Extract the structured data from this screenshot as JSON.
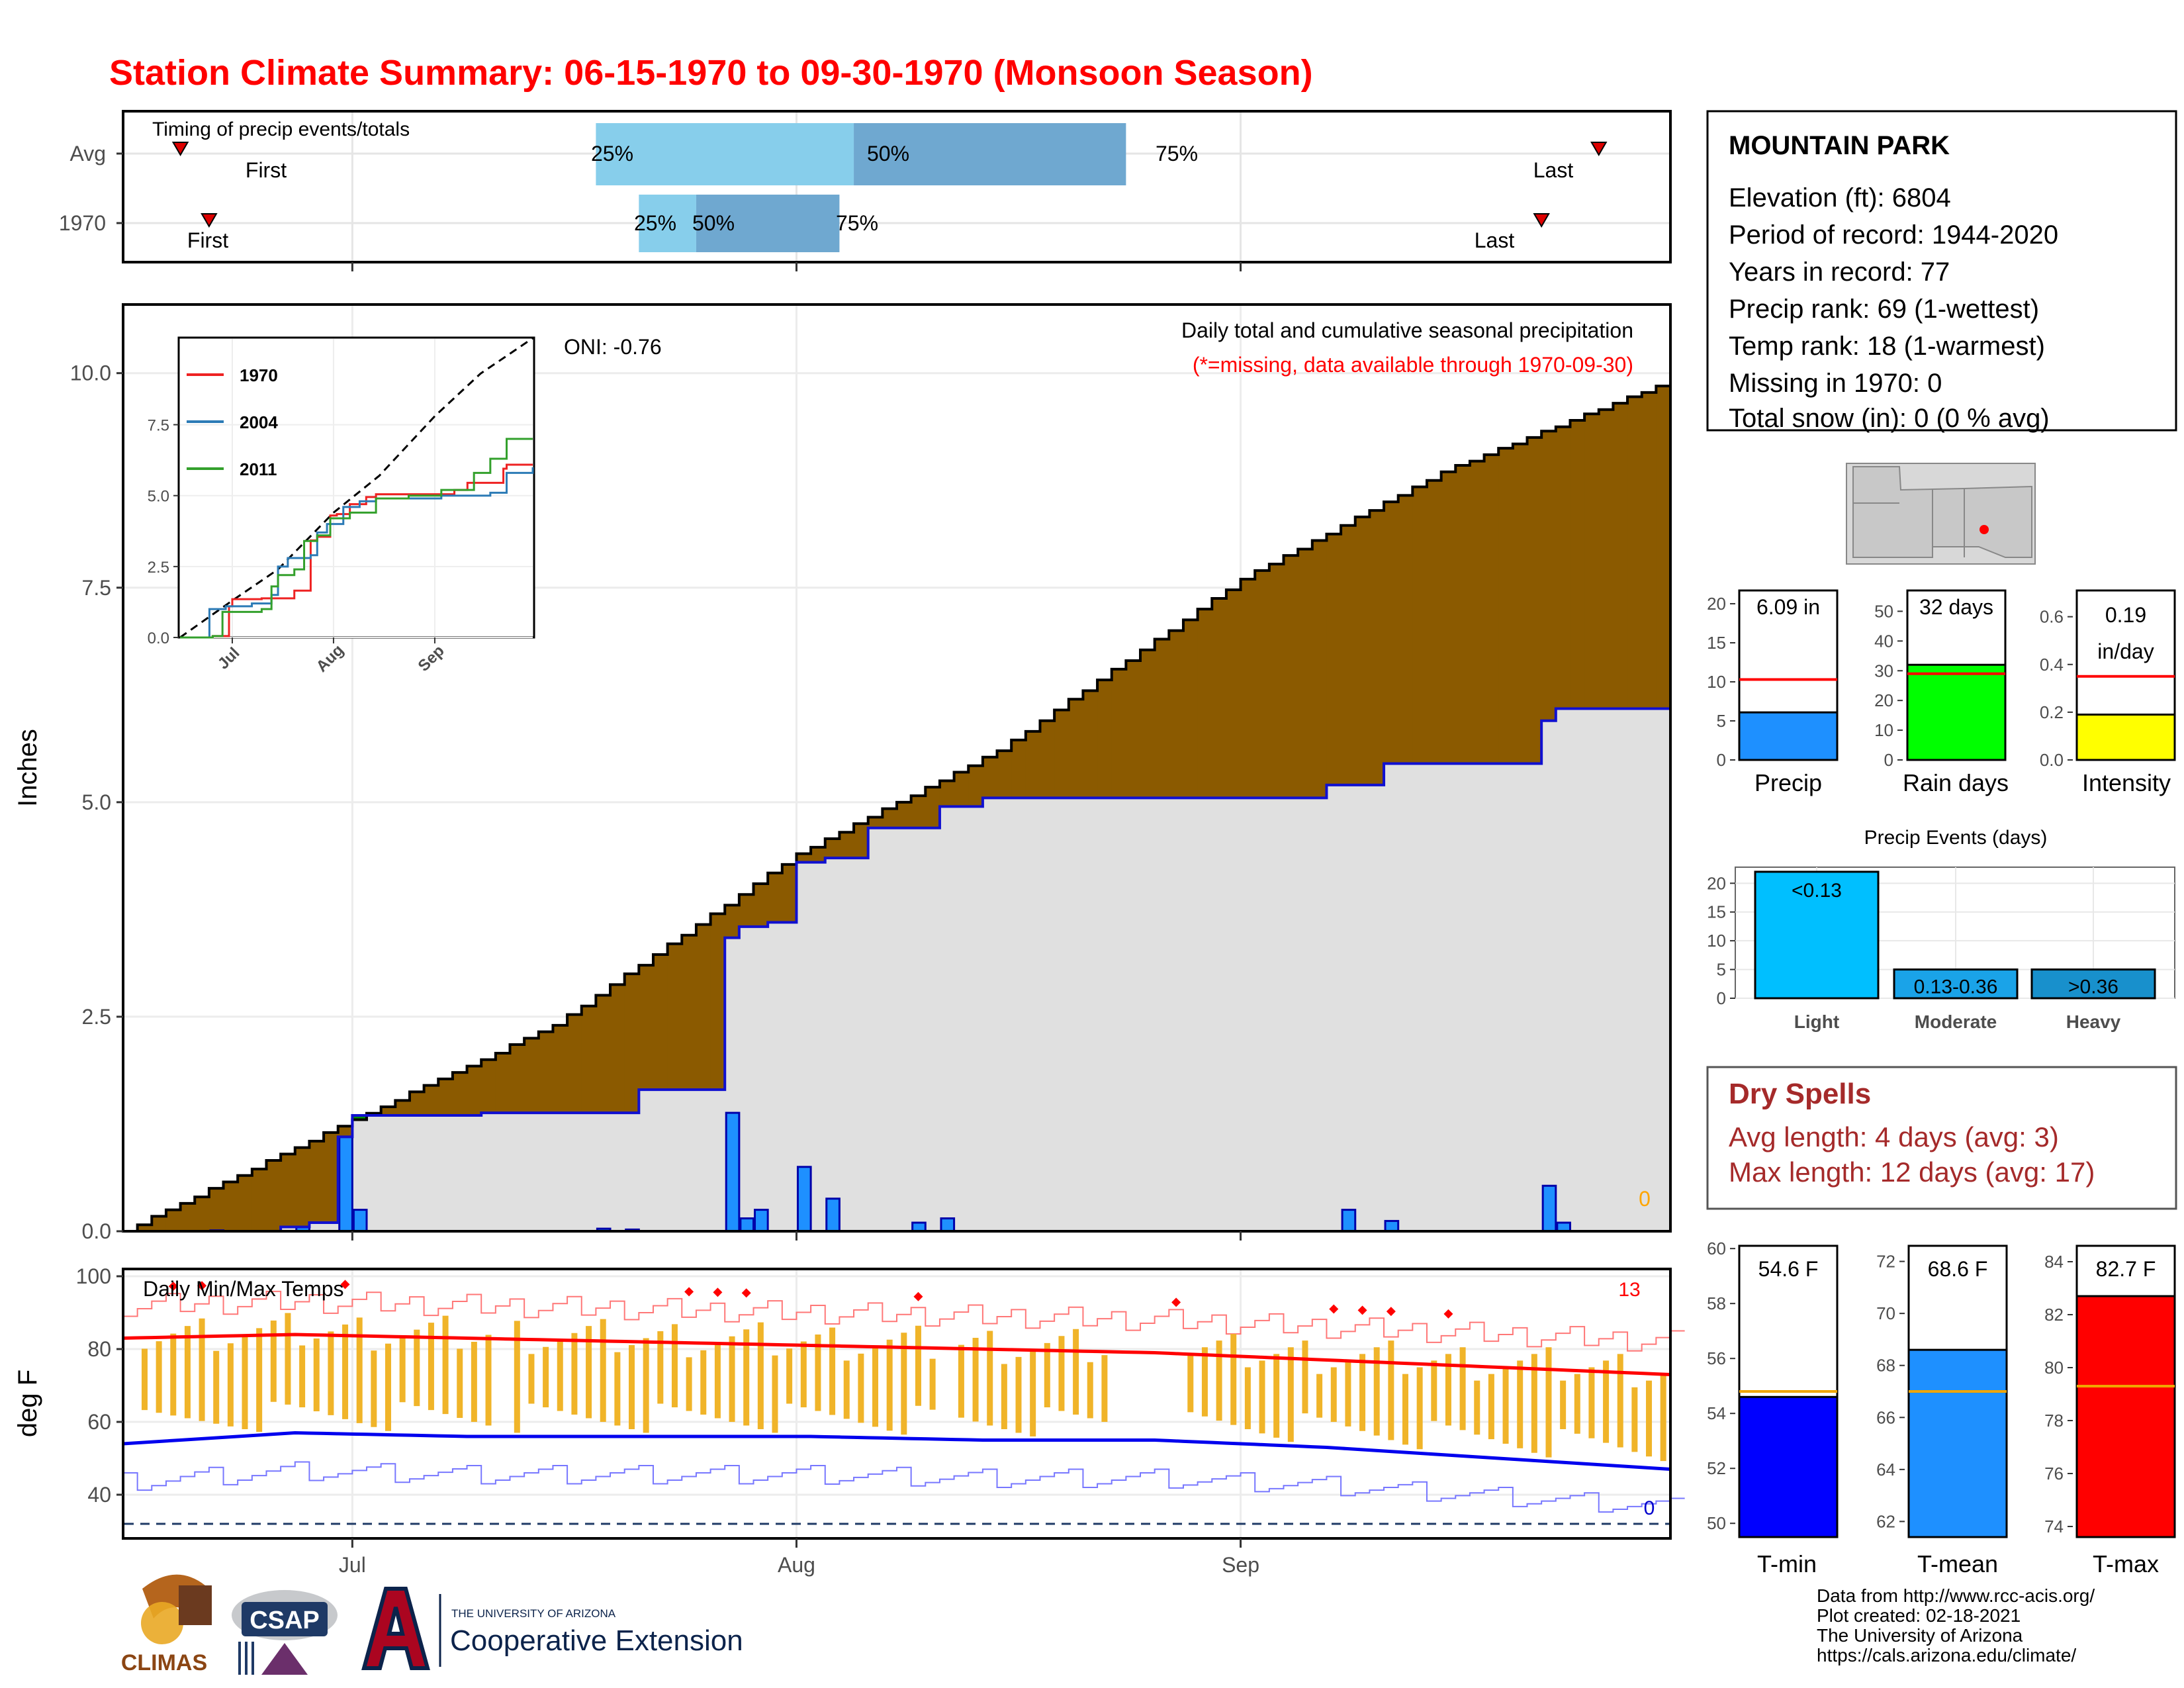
{
  "title": "Station Climate Summary: 06-15-1970 to 09-30-1970 (Monsoon Season)",
  "timeline": {
    "label": "Timing of precip events/totals",
    "rows": [
      {
        "label": "Avg",
        "first_label": "First",
        "last_label": "Last",
        "q25_label": "25%",
        "q50_label": "50%",
        "q75_label": "75%",
        "first_date": "1970-06-19",
        "last_date": "1970-09-26",
        "q25_date": "1970-07-18",
        "q50_date": "1970-08-05",
        "q75_date": "1970-08-24"
      },
      {
        "label": "1970",
        "first_label": "First",
        "last_label": "Last",
        "q25_label": "25%",
        "q50_label": "50%",
        "q75_label": "75%",
        "first_date": "1970-06-21",
        "last_date": "1970-09-22",
        "q25_date": "1970-07-21",
        "q50_date": "1970-07-25",
        "q75_date": "1970-08-04"
      }
    ]
  },
  "precip_panel": {
    "ylabel": "Inches",
    "yticks": [
      "0.0",
      "2.5",
      "5.0",
      "7.5",
      "10.0"
    ],
    "note_title": "Daily total and cumulative seasonal precipitation",
    "note_missing": "(*=missing, data available through 1970-09-30)",
    "oni": "ONI: -0.76",
    "missing_count": "0"
  },
  "inset": {
    "yticks": [
      "0.0",
      "2.5",
      "5.0",
      "7.5"
    ],
    "xticks": [
      "Jul",
      "Aug",
      "Sep"
    ],
    "legend": [
      "1970",
      "2004",
      "2011"
    ]
  },
  "temp_panel": {
    "ylabel": "deg F",
    "label": "Daily Min/Max Temps",
    "yticks": [
      "40",
      "60",
      "80",
      "100"
    ],
    "count_high": "13",
    "count_low": "0"
  },
  "month_labels": [
    "Jul",
    "Aug",
    "Sep"
  ],
  "station": {
    "name": "MOUNTAIN PARK",
    "lines": [
      "Elevation (ft): 6804",
      "Period of record: 1944-2020",
      "Years in record: 77",
      "Precip rank: 69 (1-wettest)",
      "Temp rank: 18 (1-warmest)",
      "Missing in 1970: 0",
      "Total snow (in): 0 (0 % avg)"
    ]
  },
  "mini_bars": {
    "precip": {
      "label": "Precip",
      "value_label": "6.09 in",
      "yticks": [
        "0",
        "5",
        "10",
        "15",
        "20"
      ]
    },
    "rain_days": {
      "label": "Rain days",
      "value_label": "32 days",
      "yticks": [
        "0",
        "10",
        "20",
        "30",
        "40",
        "50"
      ]
    },
    "intensity": {
      "label": "Intensity",
      "value_label": "0.19",
      "value_label2": "in/day",
      "yticks": [
        "0.0",
        "0.2",
        "0.4",
        "0.6"
      ]
    }
  },
  "events": {
    "title": "Precip Events (days)",
    "yticks": [
      "0",
      "5",
      "10",
      "15",
      "20"
    ],
    "bars": [
      {
        "cat": "Light",
        "label": "<0.13"
      },
      {
        "cat": "Moderate",
        "label": "0.13-0.36"
      },
      {
        "cat": "Heavy",
        "label": ">0.36"
      }
    ]
  },
  "dry_spells": {
    "title": "Dry Spells",
    "avg": "Avg length: 4 days (avg: 3)",
    "max": "Max length: 12 days (avg: 17)"
  },
  "temp_bars": {
    "tmin": {
      "label": "T-min",
      "value_label": "54.6 F",
      "yticks": [
        "50",
        "52",
        "54",
        "56",
        "58",
        "60"
      ]
    },
    "tmean": {
      "label": "T-mean",
      "value_label": "68.6 F",
      "yticks": [
        "62",
        "64",
        "66",
        "68",
        "70",
        "72"
      ]
    },
    "tmax": {
      "label": "T-max",
      "value_label": "82.7 F",
      "yticks": [
        "74",
        "76",
        "78",
        "80",
        "82",
        "84"
      ]
    }
  },
  "footer": {
    "lines": [
      "Data from http://www.rcc-acis.org/",
      "Plot created: 02-18-2021",
      "The University of Arizona",
      "https://cals.arizona.edu/climate/"
    ],
    "logos": {
      "climas": "CLIMAS",
      "csap": "CSAP",
      "ua_small": "THE UNIVERSITY OF ARIZONA",
      "ua_big": "Cooperative Extension"
    }
  },
  "colors": {
    "title": "#ff0000",
    "avg_fill": "#8b5a00",
    "surplus_fill": "#008c00",
    "season_fill": "#e0e0e0",
    "cum_line": "#1010d0",
    "daily_bar": "#1e90ff",
    "temp_bar": "#f0b429",
    "tmax_line": "#ff0000",
    "tmin_line": "#0000ee",
    "dry_spells": "#a52a2a",
    "rain_days": "#00ff00",
    "intensity": "#ffff00"
  },
  "chart_data": [
    {
      "type": "area",
      "title": "Daily total and cumulative seasonal precipitation",
      "ylabel": "Inches",
      "ylim": [
        0,
        10.8
      ],
      "x_start": "1970-06-15",
      "x_end": "1970-09-30",
      "series": [
        {
          "name": "1970",
          "x": [
            "1970-06-15",
            "1970-06-26",
            "1970-06-27",
            "1970-06-28",
            "1970-06-30",
            "1970-07-01",
            "1970-07-10",
            "1970-07-21",
            "1970-07-27",
            "1970-07-28",
            "1970-07-30",
            "1970-08-01",
            "1970-08-03",
            "1970-08-06",
            "1970-08-11",
            "1970-08-14",
            "1970-09-07",
            "1970-09-11",
            "1970-09-22",
            "1970-09-23",
            "1970-09-30"
          ],
          "values": [
            0.0,
            0.05,
            0.05,
            0.1,
            1.1,
            1.35,
            1.38,
            1.65,
            3.42,
            3.55,
            3.6,
            4.3,
            4.35,
            4.7,
            4.95,
            5.05,
            5.2,
            5.45,
            5.95,
            6.09,
            6.09
          ]
        }
      ],
      "daily_precip": {
        "x": [
          "1970-06-21",
          "1970-06-27",
          "1970-06-30",
          "1970-07-01",
          "1970-07-18",
          "1970-07-20",
          "1970-07-27",
          "1970-07-28",
          "1970-07-29",
          "1970-08-01",
          "1970-08-03",
          "1970-08-09",
          "1970-08-11",
          "1970-09-08",
          "1970-09-11",
          "1970-09-22",
          "1970-09-23"
        ],
        "values": [
          0.01,
          0.05,
          1.1,
          0.25,
          0.03,
          0.02,
          1.38,
          0.15,
          0.25,
          0.75,
          0.38,
          0.1,
          0.15,
          0.25,
          0.12,
          0.53,
          0.1
        ]
      },
      "average_cumulative": {
        "x": [
          "1970-06-15",
          "1970-07-01",
          "1970-07-15",
          "1970-08-01",
          "1970-08-15",
          "1970-09-01",
          "1970-09-15",
          "1970-09-30"
        ],
        "values": [
          0.0,
          1.3,
          2.4,
          4.4,
          5.6,
          7.6,
          8.85,
          9.85
        ]
      }
    },
    {
      "type": "line",
      "yticks": [
        "0.0",
        "2.5",
        "5.0",
        "7.5"
      ],
      "series": [
        {
          "name": "1970"
        },
        {
          "name": "2004"
        },
        {
          "name": "2011"
        }
      ]
    },
    {
      "type": "bar",
      "title": "Daily Min/Max Temps",
      "ylabel": "deg F",
      "ylim": [
        28,
        102
      ],
      "tmax_avg": [
        83,
        84,
        83,
        82,
        81,
        80,
        79,
        77,
        75,
        73
      ],
      "tmin_avg": [
        54,
        57,
        56,
        56,
        56,
        55,
        55,
        53,
        50,
        47
      ],
      "freeze_line": 32
    },
    {
      "type": "bar",
      "categories": [
        "Precip",
        "Rain days",
        "Intensity"
      ],
      "values": [
        6.09,
        32,
        0.19
      ],
      "averages": [
        10.3,
        29,
        0.35
      ]
    },
    {
      "type": "bar",
      "title": "Precip Events (days)",
      "categories": [
        "Light",
        "Moderate",
        "Heavy"
      ],
      "values": [
        22,
        5,
        5
      ]
    },
    {
      "type": "bar",
      "categories": [
        "T-min",
        "T-mean",
        "T-max"
      ],
      "values": [
        54.6,
        68.6,
        82.7
      ],
      "averages": [
        54.8,
        67.0,
        79.3
      ]
    }
  ]
}
